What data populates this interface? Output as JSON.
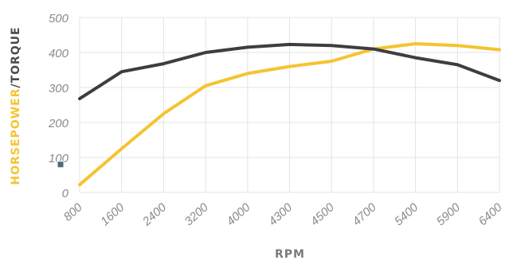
{
  "chart_data": {
    "type": "line",
    "categories": [
      "800",
      "1600",
      "2400",
      "3200",
      "4000",
      "4300",
      "4500",
      "4700",
      "5400",
      "5900",
      "6400"
    ],
    "y_ticks": [
      "0",
      "100",
      "200",
      "300",
      "400",
      "500"
    ],
    "ylim": [
      0,
      500
    ],
    "grid": true,
    "legend": "none",
    "xlabel": "RPM",
    "ylabel": {
      "part1": "HORSEPOWER",
      "separator": "/",
      "part2": "TORQUE"
    },
    "series": [
      {
        "color": "#f4c430",
        "values": [
          22,
          125,
          225,
          305,
          340,
          360,
          375,
          410,
          425,
          420,
          408
        ]
      },
      {
        "color": "#3e3e3e",
        "values": [
          268,
          345,
          368,
          400,
          415,
          423,
          420,
          410,
          385,
          365,
          320
        ]
      }
    ],
    "marker": {
      "color": "#4a6a80",
      "category_index": 0,
      "value": 80
    }
  }
}
